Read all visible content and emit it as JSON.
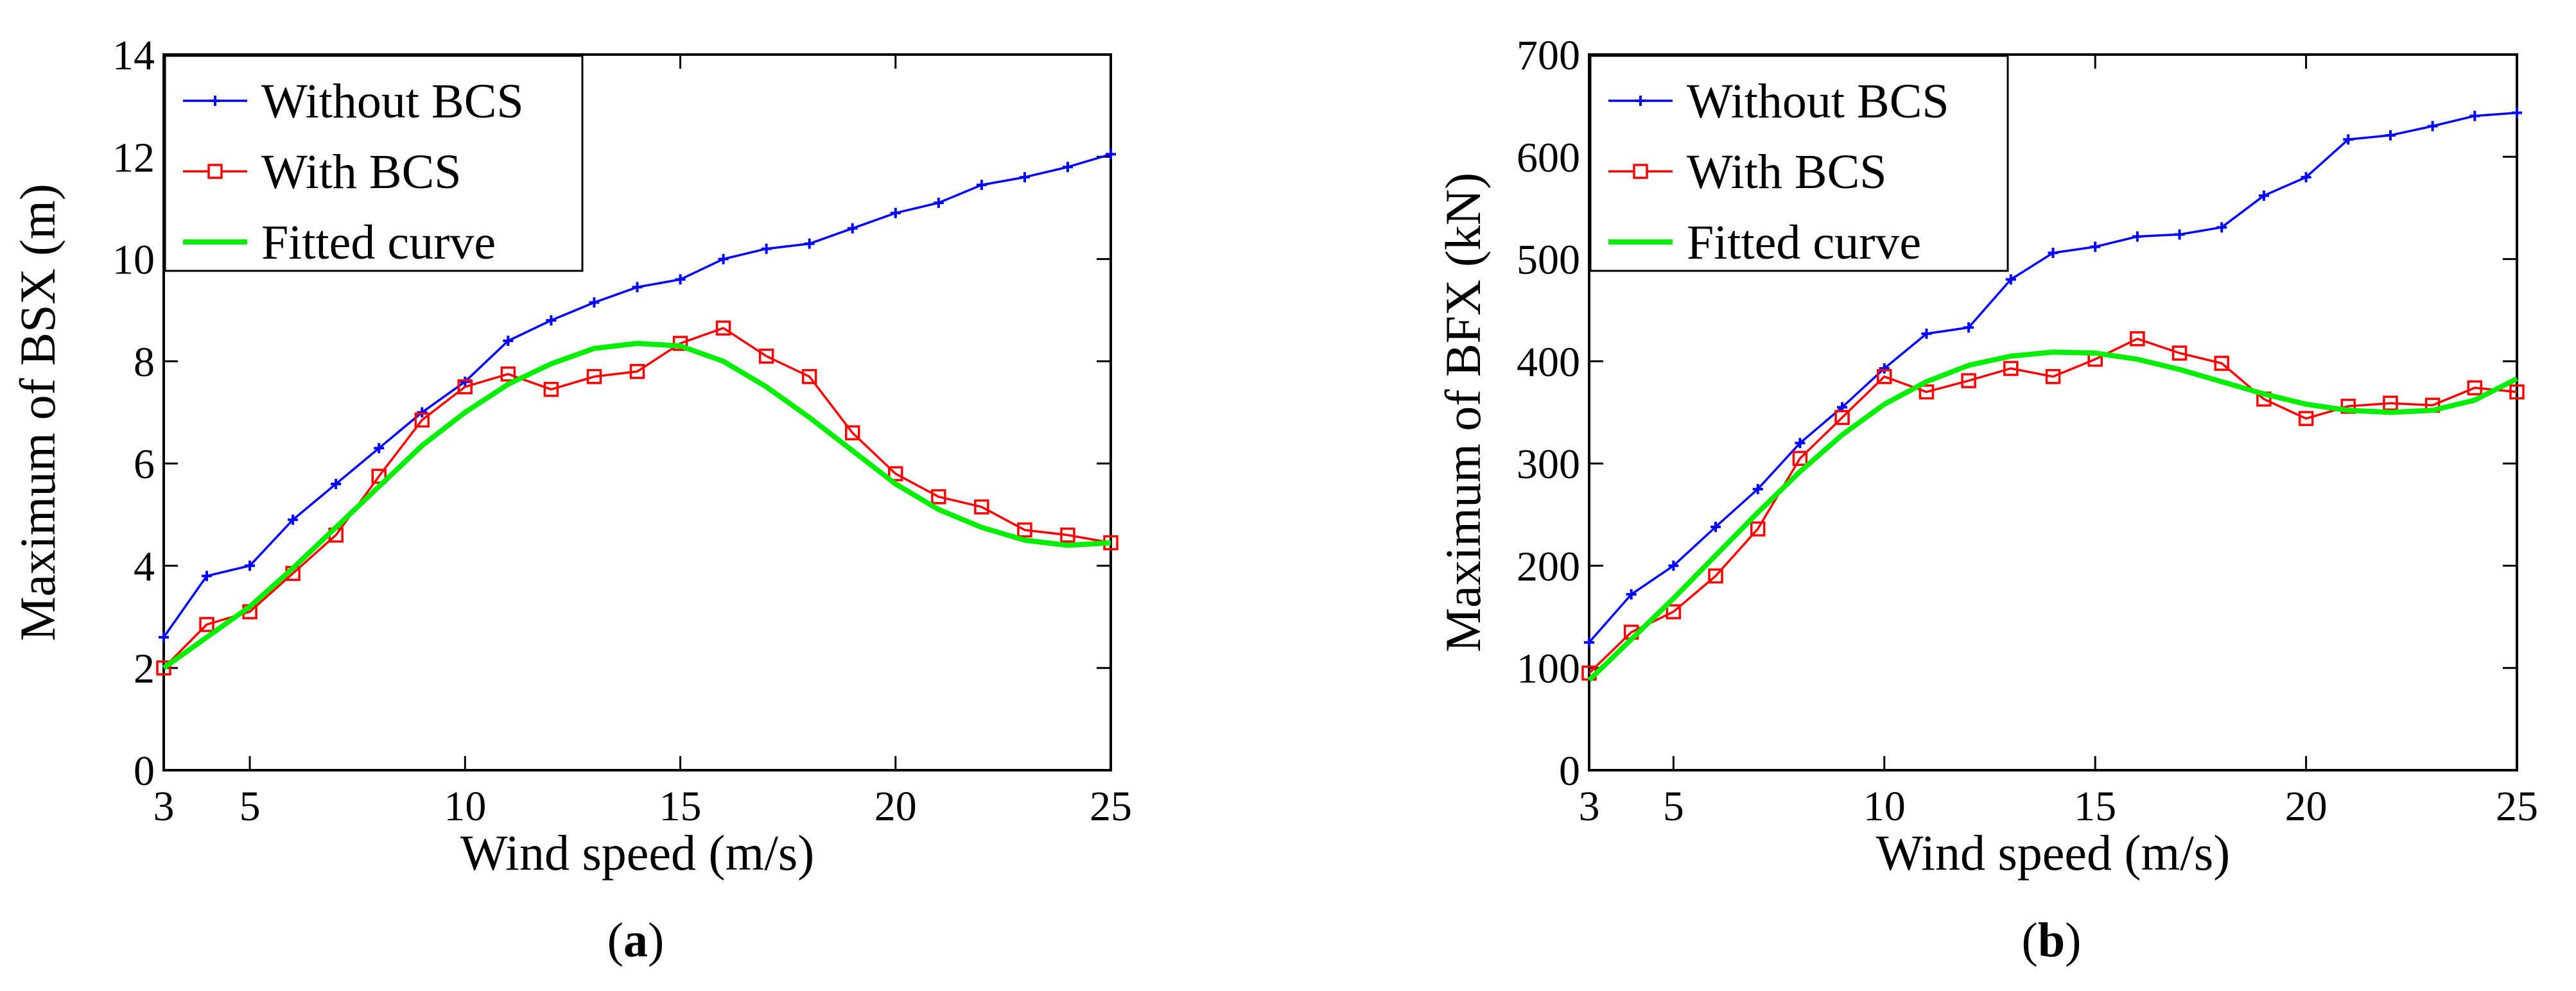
{
  "chart_data": [
    {
      "type": "line",
      "panel": "a",
      "caption_open": "(",
      "caption_letter": "a",
      "caption_close": ")",
      "xlabel": "Wind speed (m/s)",
      "ylabel": "Maximum of BSX (m)",
      "xlim": [
        3,
        25
      ],
      "ylim": [
        0,
        14
      ],
      "xticks": [
        3,
        5,
        10,
        15,
        20,
        25
      ],
      "yticks": [
        0,
        2,
        4,
        6,
        8,
        10,
        12,
        14
      ],
      "grid": false,
      "legend_position": "top-left",
      "series": [
        {
          "name": "Without BCS",
          "color": "#0000ff",
          "marker": "plus",
          "x": [
            3,
            4,
            5,
            6,
            7,
            8,
            9,
            10,
            11,
            12,
            13,
            14,
            15,
            16,
            17,
            18,
            19,
            20,
            21,
            22,
            23,
            24,
            25
          ],
          "y": [
            2.6,
            3.8,
            4.0,
            4.9,
            5.6,
            6.3,
            7.0,
            7.6,
            8.4,
            8.8,
            9.15,
            9.45,
            9.6,
            10.0,
            10.2,
            10.3,
            10.6,
            10.9,
            11.1,
            11.45,
            11.6,
            11.8,
            12.05
          ]
        },
        {
          "name": "With BCS",
          "color": "#ff0000",
          "marker": "square",
          "x": [
            3,
            4,
            5,
            6,
            7,
            8,
            9,
            10,
            11,
            12,
            13,
            14,
            15,
            16,
            17,
            18,
            19,
            20,
            21,
            22,
            23,
            24,
            25
          ],
          "y": [
            2.0,
            2.85,
            3.1,
            3.85,
            4.6,
            5.75,
            6.85,
            7.5,
            7.75,
            7.45,
            7.7,
            7.8,
            8.35,
            8.65,
            8.1,
            7.7,
            6.6,
            5.8,
            5.35,
            5.15,
            4.7,
            4.6,
            4.45
          ]
        },
        {
          "name": "Fitted curve",
          "color": "#00ee00",
          "marker": "none",
          "x": [
            3,
            4,
            5,
            6,
            7,
            8,
            9,
            10,
            11,
            12,
            13,
            14,
            15,
            16,
            17,
            18,
            19,
            20,
            21,
            22,
            23,
            24,
            25
          ],
          "y": [
            2.0,
            2.6,
            3.2,
            3.95,
            4.75,
            5.55,
            6.35,
            7.0,
            7.55,
            7.95,
            8.25,
            8.35,
            8.3,
            8.0,
            7.5,
            6.9,
            6.25,
            5.6,
            5.1,
            4.75,
            4.5,
            4.4,
            4.45
          ]
        }
      ]
    },
    {
      "type": "line",
      "panel": "b",
      "caption_open": "(",
      "caption_letter": "b",
      "caption_close": ")",
      "xlabel": "Wind speed (m/s)",
      "ylabel": "Maximum of BFX (kN)",
      "xlim": [
        3,
        25
      ],
      "ylim": [
        0,
        700
      ],
      "xticks": [
        3,
        5,
        10,
        15,
        20,
        25
      ],
      "yticks": [
        0,
        100,
        200,
        300,
        400,
        500,
        600,
        700
      ],
      "grid": false,
      "legend_position": "top-left",
      "series": [
        {
          "name": "Without BCS",
          "color": "#0000ff",
          "marker": "plus",
          "x": [
            3,
            4,
            5,
            6,
            7,
            8,
            9,
            10,
            11,
            12,
            13,
            14,
            15,
            16,
            17,
            18,
            19,
            20,
            21,
            22,
            23,
            24,
            25
          ],
          "y": [
            125,
            172,
            200,
            238,
            275,
            320,
            355,
            393,
            427,
            433,
            480,
            506,
            512,
            522,
            524,
            531,
            562,
            580,
            617,
            621,
            630,
            640,
            643
          ]
        },
        {
          "name": "With BCS",
          "color": "#ff0000",
          "marker": "square",
          "x": [
            3,
            4,
            5,
            6,
            7,
            8,
            9,
            10,
            11,
            12,
            13,
            14,
            15,
            16,
            17,
            18,
            19,
            20,
            21,
            22,
            23,
            24,
            25
          ],
          "y": [
            95,
            135,
            155,
            190,
            236,
            305,
            345,
            385,
            370,
            381,
            393,
            385,
            402,
            422,
            408,
            398,
            363,
            344,
            356,
            359,
            357,
            374,
            370
          ]
        },
        {
          "name": "Fitted curve",
          "color": "#00ee00",
          "marker": "none",
          "x": [
            3,
            4,
            5,
            6,
            7,
            8,
            9,
            10,
            11,
            12,
            13,
            14,
            15,
            16,
            17,
            18,
            19,
            20,
            21,
            22,
            23,
            24,
            25
          ],
          "y": [
            88,
            128,
            168,
            210,
            252,
            292,
            328,
            358,
            380,
            396,
            405,
            409,
            408,
            402,
            392,
            380,
            368,
            358,
            352,
            350,
            352,
            362,
            383
          ]
        }
      ]
    }
  ]
}
